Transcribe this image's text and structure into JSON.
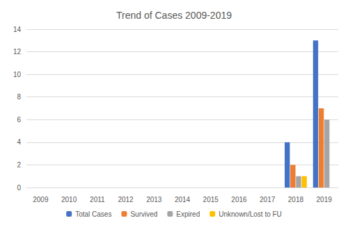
{
  "chart_data": {
    "type": "bar",
    "title": "Trend of Cases 2009-2019",
    "categories": [
      "2009",
      "2010",
      "2011",
      "2012",
      "2013",
      "2014",
      "2015",
      "2016",
      "2017",
      "2018",
      "2019"
    ],
    "series": [
      {
        "name": "Total Cases",
        "color": "#4472c4",
        "values": [
          0,
          0,
          0,
          0,
          0,
          0,
          0,
          0,
          0,
          4,
          13
        ]
      },
      {
        "name": "Survived",
        "color": "#ed7d31",
        "values": [
          0,
          0,
          0,
          0,
          0,
          0,
          0,
          0,
          0,
          2,
          7
        ]
      },
      {
        "name": "Expired",
        "color": "#a5a5a5",
        "values": [
          0,
          0,
          0,
          0,
          0,
          0,
          0,
          0,
          0,
          1,
          6
        ]
      },
      {
        "name": "Unknown/Lost to FU",
        "color": "#ffc000",
        "values": [
          0,
          0,
          0,
          0,
          0,
          0,
          0,
          0,
          0,
          1,
          0
        ]
      }
    ],
    "ylim": [
      0,
      14
    ],
    "yticks": [
      0,
      2,
      4,
      6,
      8,
      10,
      12,
      14
    ],
    "grid": true,
    "legend": "bottom"
  }
}
